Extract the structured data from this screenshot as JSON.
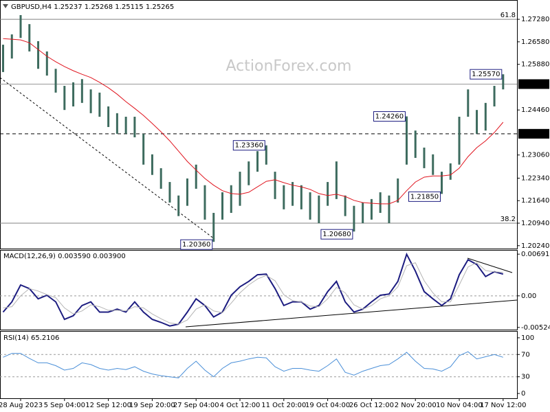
{
  "chart_data": [
    {
      "type": "ohlc",
      "title": "GBPUSD,H4  1.25237 1.25268 1.25115 1.25265",
      "watermark": "ActionForex.com",
      "color": "#3d6b5e",
      "high": [
        1.2649,
        1.2681,
        1.2741,
        1.2713,
        1.266,
        1.2628,
        1.2574,
        1.2521,
        1.2532,
        1.2542,
        1.251,
        1.25,
        1.2457,
        1.2436,
        1.2425,
        1.2425,
        1.2372,
        1.2308,
        1.2265,
        1.2222,
        1.218,
        1.2233,
        1.2276,
        1.2212,
        1.2126,
        1.219,
        1.2212,
        1.2254,
        1.2286,
        1.2318,
        1.2336,
        1.2254,
        1.2212,
        1.2222,
        1.2212,
        1.219,
        1.218,
        1.2222,
        1.2286,
        1.218,
        1.2148,
        1.2158,
        1.2169,
        1.219,
        1.218,
        1.2233,
        1.2426,
        1.2382,
        1.2329,
        1.2308,
        1.2254,
        1.228,
        1.2425,
        1.251,
        1.2446,
        1.2468,
        1.2521,
        1.2557
      ],
      "low": [
        1.2564,
        1.2606,
        1.267,
        1.2628,
        1.2574,
        1.2553,
        1.25,
        1.2446,
        1.2457,
        1.2468,
        1.2436,
        1.2425,
        1.2393,
        1.2372,
        1.2372,
        1.2361,
        1.2276,
        1.2244,
        1.2201,
        1.2158,
        1.2116,
        1.2148,
        1.2201,
        1.2105,
        1.2036,
        1.2105,
        1.2126,
        1.2148,
        1.2212,
        1.2254,
        1.2276,
        1.2169,
        1.2137,
        1.2148,
        1.2137,
        1.2105,
        1.2094,
        1.2148,
        1.2169,
        1.2116,
        1.2068,
        1.2094,
        1.2105,
        1.2126,
        1.2094,
        1.2158,
        1.2276,
        1.2297,
        1.2265,
        1.2244,
        1.2185,
        1.2229,
        1.2276,
        1.2425,
        1.2372,
        1.2382,
        1.2457,
        1.251
      ],
      "ma": {
        "color": "#e0141e",
        "values": [
          1.2668,
          1.2666,
          1.2664,
          1.2655,
          1.2634,
          1.2613,
          1.2596,
          1.2581,
          1.2568,
          1.2557,
          1.2547,
          1.2532,
          1.2515,
          1.2495,
          1.2472,
          1.2451,
          1.2429,
          1.2404,
          1.2378,
          1.235,
          1.2318,
          1.2286,
          1.2259,
          1.2233,
          1.2212,
          1.2195,
          1.2186,
          1.2184,
          1.219,
          1.2207,
          1.2224,
          1.2229,
          1.222,
          1.2212,
          1.2207,
          1.2199,
          1.2186,
          1.218,
          1.2184,
          1.2177,
          1.2165,
          1.2158,
          1.2156,
          1.2154,
          1.2154,
          1.2165,
          1.2195,
          1.2222,
          1.2237,
          1.2241,
          1.2241,
          1.2244,
          1.2265,
          1.2301,
          1.2329,
          1.235,
          1.2376,
          1.2408
        ]
      },
      "levels": [
        {
          "value": 1.2728,
          "label": "61.8"
        },
        {
          "value": 1.2094,
          "label": "38.2"
        }
      ],
      "price_marks": [
        {
          "value": 1.25265,
          "label": "1.25265",
          "line": "solid"
        },
        {
          "value": 1.2372,
          "label": "1.23720",
          "line": "dashed"
        }
      ],
      "annotations": [
        {
          "value": 1.2557,
          "label": "1.25570"
        },
        {
          "value": 1.2426,
          "label": "1.24260"
        },
        {
          "value": 1.2336,
          "label": "1.23360"
        },
        {
          "value": 1.2185,
          "label": "1.21850"
        },
        {
          "value": 1.2068,
          "label": "1.20680"
        },
        {
          "value": 1.2036,
          "label": "1.20360"
        }
      ],
      "ylim": [
        1.2015,
        1.2788
      ],
      "yticks": [
        {
          "value": 1.2728,
          "label": "1.27280"
        },
        {
          "value": 1.2658,
          "label": "1.26580"
        },
        {
          "value": 1.2588,
          "label": "1.25880"
        },
        {
          "value": 1.2446,
          "label": "1.24460"
        },
        {
          "value": 1.2306,
          "label": "1.23060"
        },
        {
          "value": 1.2234,
          "label": "1.22340"
        },
        {
          "value": 1.2164,
          "label": "1.21640"
        },
        {
          "value": 1.2094,
          "label": "1.20940"
        },
        {
          "value": 1.2024,
          "label": "1.20240"
        }
      ]
    },
    {
      "type": "line",
      "title": "MACD(12,26,9) 0.003590 0.003900",
      "series": [
        {
          "color": "#1c1c80",
          "width": 2,
          "values": [
            -0.0027,
            -0.001,
            0.0018,
            0.0012,
            -0.0005,
            0.0001,
            -0.001,
            -0.0039,
            -0.0033,
            -0.0016,
            -0.001,
            -0.0027,
            -0.0027,
            -0.0022,
            -0.0027,
            -0.001,
            -0.0027,
            -0.0039,
            -0.0044,
            -0.005,
            -0.0047,
            -0.0027,
            -0.0005,
            -0.0016,
            -0.0035,
            -0.0027,
            0.0001,
            0.0015,
            0.0024,
            0.0035,
            0.0036,
            0.0012,
            -0.0016,
            -0.001,
            -0.001,
            -0.0022,
            -0.0016,
            0.0007,
            0.0024,
            -0.001,
            -0.0027,
            -0.0022,
            -0.001,
            0.0001,
            0.0003,
            0.0024,
            0.0069,
            0.0041,
            0.0007,
            -0.0005,
            -0.0016,
            -0.0005,
            0.0035,
            0.006,
            0.0052,
            0.0032,
            0.004,
            0.0036
          ]
        },
        {
          "color": "#b4b4b4",
          "width": 1,
          "values": [
            -0.002,
            -0.0018,
            0.0,
            0.0012,
            0.0008,
            0.0002,
            -0.0003,
            -0.002,
            -0.003,
            -0.0025,
            -0.0015,
            -0.0018,
            -0.0024,
            -0.0024,
            -0.0025,
            -0.0018,
            -0.002,
            -0.003,
            -0.0038,
            -0.0045,
            -0.0047,
            -0.004,
            -0.0022,
            -0.0015,
            -0.0025,
            -0.0028,
            -0.0012,
            0.0005,
            0.0018,
            0.0028,
            0.0034,
            0.0025,
            0.0002,
            -0.0008,
            -0.001,
            -0.0017,
            -0.0018,
            -0.0005,
            0.0014,
            0.0005,
            -0.0015,
            -0.0022,
            -0.0016,
            -0.0005,
            0.0,
            0.0015,
            0.005,
            0.0055,
            0.0025,
            0.0005,
            -0.001,
            -0.001,
            0.0018,
            0.0048,
            0.0055,
            0.0042,
            0.004,
            0.0039
          ]
        }
      ],
      "levels": [
        0
      ],
      "ylim": [
        -0.0056,
        0.0075
      ],
      "yticks": [
        0.006915,
        {
          "value": 0,
          "label": "0.00"
        },
        -0.005241
      ]
    },
    {
      "type": "line",
      "title": "RSI(14) 65.2106",
      "series": [
        {
          "color": "#4a8fd8",
          "width": 1,
          "values": [
            65,
            72,
            72,
            63,
            55,
            55,
            50,
            42,
            45,
            55,
            52,
            45,
            42,
            45,
            43,
            48,
            40,
            35,
            32,
            30,
            28,
            45,
            58,
            42,
            30,
            45,
            55,
            58,
            62,
            65,
            64,
            48,
            40,
            45,
            45,
            42,
            40,
            50,
            62,
            38,
            33,
            40,
            45,
            50,
            52,
            62,
            74,
            58,
            45,
            44,
            40,
            48,
            68,
            75,
            62,
            66,
            70,
            65
          ]
        }
      ],
      "levels": [
        70,
        30
      ],
      "ylim": [
        -8.6,
        111
      ],
      "yticks": [
        100,
        70,
        30,
        0
      ],
      "categories": [
        null,
        null,
        "28 Aug 2023",
        null,
        null,
        null,
        null,
        "5 Sep 04:00",
        null,
        null,
        null,
        null,
        "12 Sep 12:00",
        null,
        null,
        null,
        null,
        "19 Sep 20:00",
        null,
        null,
        null,
        null,
        "27 Sep 04:00",
        null,
        null,
        null,
        null,
        "4 Oct 12:00",
        null,
        null,
        null,
        null,
        "11 Oct 20:00",
        null,
        null,
        null,
        null,
        "19 Oct 04:00",
        null,
        null,
        null,
        null,
        "26 Oct 12:00",
        null,
        null,
        null,
        null,
        "2 Nov 20:00",
        null,
        null,
        null,
        null,
        "10 Nov 04:00",
        null,
        null,
        null,
        null,
        "17 Nov 12:00"
      ]
    }
  ]
}
